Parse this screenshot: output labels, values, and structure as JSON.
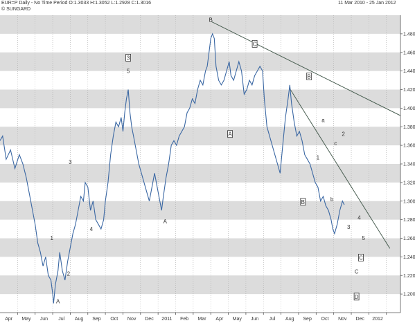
{
  "header": {
    "title": "EUR=P Daily - No Time Period O:1.3033 H:1.3052 L:1.2928 C:1.3016",
    "source": "© SUNGARD",
    "date_range": "11 Mar 2010  -  25 Jan 2012"
  },
  "colors": {
    "series": "#3a67a3",
    "trendline": "#4a5f52",
    "band": "#dcdcdc",
    "grid": "#aaaaaa"
  },
  "chart_data": {
    "type": "line",
    "title": "EUR=P Daily - No Time Period O:1.3033 H:1.3052 L:1.2928 C:1.3016",
    "ylim": [
      1.18,
      1.5
    ],
    "y_ticks": [
      "1.2000",
      "1.2200",
      "1.2400",
      "1.2600",
      "1.2800",
      "1.3000",
      "1.3200",
      "1.3400",
      "1.3600",
      "1.3800",
      "1.4000",
      "1.4200",
      "1.4400",
      "1.4600",
      "1.4800"
    ],
    "x_labels": [
      "Apr",
      "May",
      "Jun",
      "Jul",
      "Aug",
      "Sep",
      "Oct",
      "Nov",
      "Dec",
      "2011",
      "Feb",
      "Mar",
      "Apr",
      "May",
      "Jun",
      "Jul",
      "Aug",
      "Sep",
      "Oct",
      "Nov",
      "Dec",
      "2012"
    ],
    "month_index_range": [
      0,
      22.8
    ],
    "series": [
      {
        "points": [
          [
            0,
            1.365
          ],
          [
            0.15,
            1.37
          ],
          [
            0.35,
            1.345
          ],
          [
            0.6,
            1.355
          ],
          [
            0.85,
            1.335
          ],
          [
            1.1,
            1.35
          ],
          [
            1.3,
            1.34
          ],
          [
            1.5,
            1.325
          ],
          [
            1.7,
            1.305
          ],
          [
            1.85,
            1.29
          ],
          [
            2.0,
            1.275
          ],
          [
            2.15,
            1.255
          ],
          [
            2.3,
            1.245
          ],
          [
            2.45,
            1.23
          ],
          [
            2.6,
            1.24
          ],
          [
            2.75,
            1.22
          ],
          [
            2.9,
            1.215
          ],
          [
            3.0,
            1.2
          ],
          [
            3.05,
            1.19
          ],
          [
            3.15,
            1.21
          ],
          [
            3.3,
            1.225
          ],
          [
            3.4,
            1.245
          ],
          [
            3.55,
            1.225
          ],
          [
            3.7,
            1.215
          ],
          [
            3.85,
            1.235
          ],
          [
            4.0,
            1.25
          ],
          [
            4.15,
            1.265
          ],
          [
            4.3,
            1.275
          ],
          [
            4.45,
            1.29
          ],
          [
            4.6,
            1.305
          ],
          [
            4.75,
            1.3
          ],
          [
            4.85,
            1.32
          ],
          [
            5.0,
            1.315
          ],
          [
            5.15,
            1.29
          ],
          [
            5.3,
            1.3
          ],
          [
            5.45,
            1.28
          ],
          [
            5.6,
            1.275
          ],
          [
            5.75,
            1.27
          ],
          [
            5.9,
            1.28
          ],
          [
            6.0,
            1.3
          ],
          [
            6.15,
            1.32
          ],
          [
            6.3,
            1.35
          ],
          [
            6.45,
            1.37
          ],
          [
            6.6,
            1.385
          ],
          [
            6.75,
            1.38
          ],
          [
            6.9,
            1.39
          ],
          [
            7.0,
            1.375
          ],
          [
            7.1,
            1.395
          ],
          [
            7.2,
            1.41
          ],
          [
            7.3,
            1.42
          ],
          [
            7.4,
            1.395
          ],
          [
            7.5,
            1.38
          ],
          [
            7.6,
            1.37
          ],
          [
            7.75,
            1.355
          ],
          [
            7.9,
            1.34
          ],
          [
            8.05,
            1.33
          ],
          [
            8.2,
            1.32
          ],
          [
            8.35,
            1.31
          ],
          [
            8.5,
            1.3
          ],
          [
            8.65,
            1.315
          ],
          [
            8.8,
            1.33
          ],
          [
            8.95,
            1.315
          ],
          [
            9.1,
            1.3
          ],
          [
            9.2,
            1.29
          ],
          [
            9.3,
            1.305
          ],
          [
            9.45,
            1.325
          ],
          [
            9.6,
            1.34
          ],
          [
            9.75,
            1.36
          ],
          [
            9.9,
            1.365
          ],
          [
            10.05,
            1.36
          ],
          [
            10.2,
            1.37
          ],
          [
            10.35,
            1.375
          ],
          [
            10.5,
            1.38
          ],
          [
            10.65,
            1.395
          ],
          [
            10.8,
            1.4
          ],
          [
            10.95,
            1.41
          ],
          [
            11.1,
            1.405
          ],
          [
            11.25,
            1.42
          ],
          [
            11.4,
            1.43
          ],
          [
            11.55,
            1.425
          ],
          [
            11.7,
            1.44
          ],
          [
            11.8,
            1.445
          ],
          [
            11.9,
            1.46
          ],
          [
            12.0,
            1.475
          ],
          [
            12.1,
            1.48
          ],
          [
            12.2,
            1.475
          ],
          [
            12.3,
            1.445
          ],
          [
            12.45,
            1.43
          ],
          [
            12.6,
            1.425
          ],
          [
            12.75,
            1.43
          ],
          [
            12.9,
            1.44
          ],
          [
            13.05,
            1.45
          ],
          [
            13.15,
            1.435
          ],
          [
            13.3,
            1.43
          ],
          [
            13.45,
            1.44
          ],
          [
            13.6,
            1.45
          ],
          [
            13.75,
            1.44
          ],
          [
            13.9,
            1.415
          ],
          [
            14.05,
            1.42
          ],
          [
            14.2,
            1.43
          ],
          [
            14.35,
            1.425
          ],
          [
            14.5,
            1.435
          ],
          [
            14.65,
            1.44
          ],
          [
            14.8,
            1.445
          ],
          [
            14.95,
            1.44
          ],
          [
            15.05,
            1.41
          ],
          [
            15.2,
            1.38
          ],
          [
            15.35,
            1.37
          ],
          [
            15.5,
            1.36
          ],
          [
            15.65,
            1.35
          ],
          [
            15.8,
            1.34
          ],
          [
            15.95,
            1.33
          ],
          [
            16.1,
            1.36
          ],
          [
            16.25,
            1.39
          ],
          [
            16.4,
            1.41
          ],
          [
            16.5,
            1.425
          ],
          [
            16.6,
            1.405
          ],
          [
            16.75,
            1.385
          ],
          [
            16.9,
            1.37
          ],
          [
            17.05,
            1.375
          ],
          [
            17.2,
            1.365
          ],
          [
            17.35,
            1.35
          ],
          [
            17.5,
            1.345
          ],
          [
            17.65,
            1.34
          ],
          [
            17.8,
            1.33
          ],
          [
            17.95,
            1.32
          ],
          [
            18.1,
            1.315
          ],
          [
            18.25,
            1.3
          ],
          [
            18.4,
            1.305
          ],
          [
            18.55,
            1.295
          ],
          [
            18.7,
            1.29
          ],
          [
            18.85,
            1.28
          ],
          [
            18.95,
            1.27
          ],
          [
            19.05,
            1.265
          ],
          [
            19.2,
            1.275
          ],
          [
            19.35,
            1.29
          ],
          [
            19.5,
            1.3
          ],
          [
            19.6,
            1.296
          ]
        ]
      }
    ],
    "trendlines": [
      {
        "from": [
          12.05,
          1.493
        ],
        "to": [
          22.8,
          1.392
        ]
      },
      {
        "from": [
          16.5,
          1.421
        ],
        "to": [
          22.2,
          1.249
        ]
      }
    ],
    "annotations": [
      {
        "text": "B",
        "x": 12.0,
        "y": 1.493,
        "box": false
      },
      {
        "text": "5",
        "x": 7.3,
        "y": 1.438,
        "box": false
      },
      {
        "text": "3",
        "x": 7.3,
        "y": 1.452,
        "box": true
      },
      {
        "text": "3",
        "x": 4.0,
        "y": 1.34,
        "box": false
      },
      {
        "text": "4",
        "x": 5.2,
        "y": 1.268,
        "box": false
      },
      {
        "text": "1",
        "x": 2.95,
        "y": 1.258,
        "box": false
      },
      {
        "text": "2",
        "x": 3.9,
        "y": 1.22,
        "box": false
      },
      {
        "text": "A",
        "x": 3.3,
        "y": 1.19,
        "box": false
      },
      {
        "text": "A",
        "x": 9.4,
        "y": 1.276,
        "box": false
      },
      {
        "text": "C",
        "x": 14.5,
        "y": 1.467,
        "box": true
      },
      {
        "text": "A",
        "x": 13.1,
        "y": 1.37,
        "box": true
      },
      {
        "text": "B",
        "x": 17.6,
        "y": 1.432,
        "box": true
      },
      {
        "text": "B",
        "x": 17.25,
        "y": 1.297,
        "box": true
      },
      {
        "text": "a",
        "x": 18.4,
        "y": 1.385,
        "box": false
      },
      {
        "text": "1",
        "x": 18.1,
        "y": 1.345,
        "box": false
      },
      {
        "text": "b",
        "x": 18.9,
        "y": 1.3,
        "box": false
      },
      {
        "text": "c",
        "x": 19.1,
        "y": 1.36,
        "box": false
      },
      {
        "text": "2",
        "x": 19.55,
        "y": 1.37,
        "box": false
      },
      {
        "text": "3",
        "x": 19.85,
        "y": 1.27,
        "box": false
      },
      {
        "text": "4",
        "x": 20.45,
        "y": 1.28,
        "box": false
      },
      {
        "text": "5",
        "x": 20.7,
        "y": 1.258,
        "box": false
      },
      {
        "text": "C",
        "x": 20.55,
        "y": 1.237,
        "box": true
      },
      {
        "text": "C",
        "x": 20.3,
        "y": 1.222,
        "box": false
      },
      {
        "text": "D",
        "x": 20.3,
        "y": 1.195,
        "box": true
      }
    ]
  }
}
